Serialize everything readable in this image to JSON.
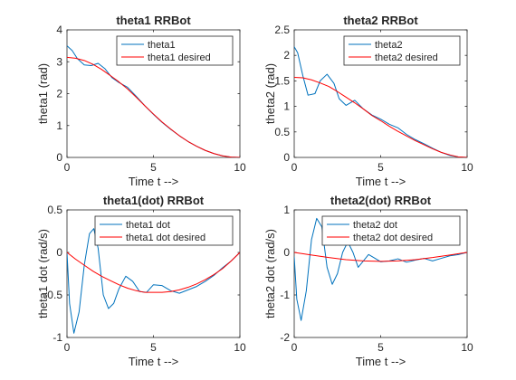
{
  "colors": {
    "actual": "#0072BD",
    "desired": "#FF0000",
    "axis": "#262626"
  },
  "chart_data": [
    {
      "type": "line",
      "title": "theta1 RRBot",
      "xlabel": "Time t -->",
      "ylabel": "theta1 (rad)",
      "xlim": [
        0,
        10
      ],
      "ylim": [
        0,
        4
      ],
      "xticks": [
        0,
        5,
        10
      ],
      "yticks": [
        0,
        1,
        2,
        3,
        4
      ],
      "grid": false,
      "legend": "top-right",
      "series": [
        {
          "name": "theta1",
          "color": "#0072BD",
          "x": [
            0,
            0.3,
            0.6,
            1.0,
            1.4,
            1.8,
            2.2,
            2.6,
            3.0,
            3.5,
            4.0,
            4.5,
            5.0,
            5.5,
            6.0,
            6.5,
            7.0,
            7.5,
            8.0,
            8.5,
            9.0,
            9.5,
            10
          ],
          "y": [
            3.5,
            3.35,
            3.1,
            2.9,
            2.88,
            2.95,
            2.78,
            2.5,
            2.35,
            2.2,
            1.92,
            1.62,
            1.35,
            1.1,
            0.88,
            0.68,
            0.5,
            0.35,
            0.22,
            0.12,
            0.05,
            0.01,
            0
          ]
        },
        {
          "name": "theta1 desired",
          "color": "#FF0000",
          "x": [
            0,
            0.5,
            1.0,
            1.5,
            2.0,
            2.5,
            3.0,
            3.5,
            4.0,
            4.5,
            5.0,
            5.5,
            6.0,
            6.5,
            7.0,
            7.5,
            8.0,
            8.5,
            9.0,
            9.5,
            10
          ],
          "y": [
            3.14,
            3.11,
            3.04,
            2.92,
            2.76,
            2.57,
            2.37,
            2.15,
            1.89,
            1.62,
            1.36,
            1.11,
            0.89,
            0.68,
            0.5,
            0.35,
            0.22,
            0.12,
            0.05,
            0.01,
            0
          ]
        }
      ]
    },
    {
      "type": "line",
      "title": "theta2 RRBot",
      "xlabel": "Time t -->",
      "ylabel": "theta2 (rad)",
      "xlim": [
        0,
        10
      ],
      "ylim": [
        0,
        2.5
      ],
      "xticks": [
        0,
        5,
        10
      ],
      "yticks": [
        0,
        0.5,
        1,
        1.5,
        2,
        2.5
      ],
      "grid": false,
      "legend": "top-right",
      "series": [
        {
          "name": "theta2",
          "color": "#0072BD",
          "x": [
            0,
            0.2,
            0.5,
            0.8,
            1.2,
            1.5,
            1.9,
            2.3,
            2.6,
            3.0,
            3.5,
            4.0,
            4.5,
            5.0,
            5.5,
            6.0,
            6.5,
            7.0,
            7.5,
            8.0,
            8.5,
            9.0,
            9.5,
            10
          ],
          "y": [
            2.17,
            2.05,
            1.6,
            1.22,
            1.25,
            1.5,
            1.63,
            1.45,
            1.15,
            1.02,
            1.12,
            0.95,
            0.83,
            0.75,
            0.65,
            0.58,
            0.45,
            0.35,
            0.27,
            0.18,
            0.1,
            0.04,
            0.01,
            0
          ]
        },
        {
          "name": "theta2 desired",
          "color": "#FF0000",
          "x": [
            0,
            0.5,
            1.0,
            1.5,
            2.0,
            2.5,
            3.0,
            3.5,
            4.0,
            4.5,
            5.0,
            5.5,
            6.0,
            6.5,
            7.0,
            7.5,
            8.0,
            8.5,
            9.0,
            9.5,
            10
          ],
          "y": [
            1.57,
            1.56,
            1.52,
            1.46,
            1.39,
            1.29,
            1.18,
            1.07,
            0.95,
            0.82,
            0.72,
            0.61,
            0.51,
            0.42,
            0.33,
            0.25,
            0.17,
            0.1,
            0.05,
            0.01,
            0
          ]
        }
      ]
    },
    {
      "type": "line",
      "title": "theta1(dot) RRBot",
      "xlabel": "Time t -->",
      "ylabel": "theta1 dot (rad/s)",
      "xlim": [
        0,
        10
      ],
      "ylim": [
        -1,
        0.5
      ],
      "xticks": [
        0,
        5,
        10
      ],
      "yticks": [
        -1,
        -0.5,
        0,
        0.5
      ],
      "grid": false,
      "legend": "top-right",
      "series": [
        {
          "name": "theta1 dot",
          "color": "#0072BD",
          "x": [
            0,
            0.15,
            0.4,
            0.7,
            1.0,
            1.3,
            1.55,
            1.8,
            2.1,
            2.4,
            2.7,
            3.0,
            3.4,
            3.8,
            4.2,
            4.6,
            5.0,
            5.5,
            6.0,
            6.5,
            7.0,
            7.5,
            8.0,
            8.5,
            9.0,
            9.5,
            10
          ],
          "y": [
            0,
            -0.6,
            -0.95,
            -0.7,
            -0.15,
            0.22,
            0.28,
            0.05,
            -0.5,
            -0.66,
            -0.6,
            -0.43,
            -0.28,
            -0.34,
            -0.46,
            -0.47,
            -0.38,
            -0.39,
            -0.45,
            -0.48,
            -0.44,
            -0.4,
            -0.34,
            -0.27,
            -0.18,
            -0.1,
            0
          ]
        },
        {
          "name": "theta1 dot desired",
          "color": "#FF0000",
          "x": [
            0,
            0.5,
            1.0,
            1.5,
            2.0,
            2.5,
            3.0,
            3.5,
            4.0,
            4.5,
            5.0,
            5.5,
            6.0,
            6.5,
            7.0,
            7.5,
            8.0,
            8.5,
            9.0,
            9.5,
            10
          ],
          "y": [
            0,
            -0.08,
            -0.15,
            -0.22,
            -0.28,
            -0.33,
            -0.38,
            -0.42,
            -0.45,
            -0.47,
            -0.47,
            -0.47,
            -0.46,
            -0.44,
            -0.41,
            -0.37,
            -0.32,
            -0.26,
            -0.19,
            -0.1,
            0
          ]
        }
      ]
    },
    {
      "type": "line",
      "title": "theta2(dot) RRBot",
      "xlabel": "Time t -->",
      "ylabel": "theta2 dot (rad/s)",
      "xlim": [
        0,
        10
      ],
      "ylim": [
        -2,
        1
      ],
      "xticks": [
        0,
        5,
        10
      ],
      "yticks": [
        -2,
        -1,
        0,
        1
      ],
      "grid": false,
      "legend": "top-right",
      "series": [
        {
          "name": "theta2 dot",
          "color": "#0072BD",
          "x": [
            0,
            0.15,
            0.4,
            0.7,
            1.0,
            1.3,
            1.6,
            1.9,
            2.2,
            2.5,
            2.8,
            3.1,
            3.4,
            3.7,
            4.0,
            4.3,
            4.6,
            5.0,
            5.5,
            6.0,
            6.5,
            7.0,
            7.5,
            8.0,
            8.5,
            9.0,
            9.5,
            10
          ],
          "y": [
            -0.1,
            -1.1,
            -1.6,
            -0.9,
            0.3,
            0.8,
            0.6,
            -0.35,
            -0.75,
            -0.5,
            0.0,
            0.25,
            0.0,
            -0.35,
            -0.2,
            -0.05,
            -0.12,
            -0.22,
            -0.2,
            -0.15,
            -0.23,
            -0.18,
            -0.14,
            -0.2,
            -0.14,
            -0.08,
            -0.05,
            0
          ]
        },
        {
          "name": "theta2 dot desired",
          "color": "#FF0000",
          "x": [
            0,
            1,
            2,
            3,
            4,
            5,
            6,
            7,
            8,
            9,
            10
          ],
          "y": [
            0,
            -0.06,
            -0.12,
            -0.17,
            -0.2,
            -0.21,
            -0.2,
            -0.17,
            -0.12,
            -0.06,
            0
          ]
        }
      ]
    }
  ]
}
